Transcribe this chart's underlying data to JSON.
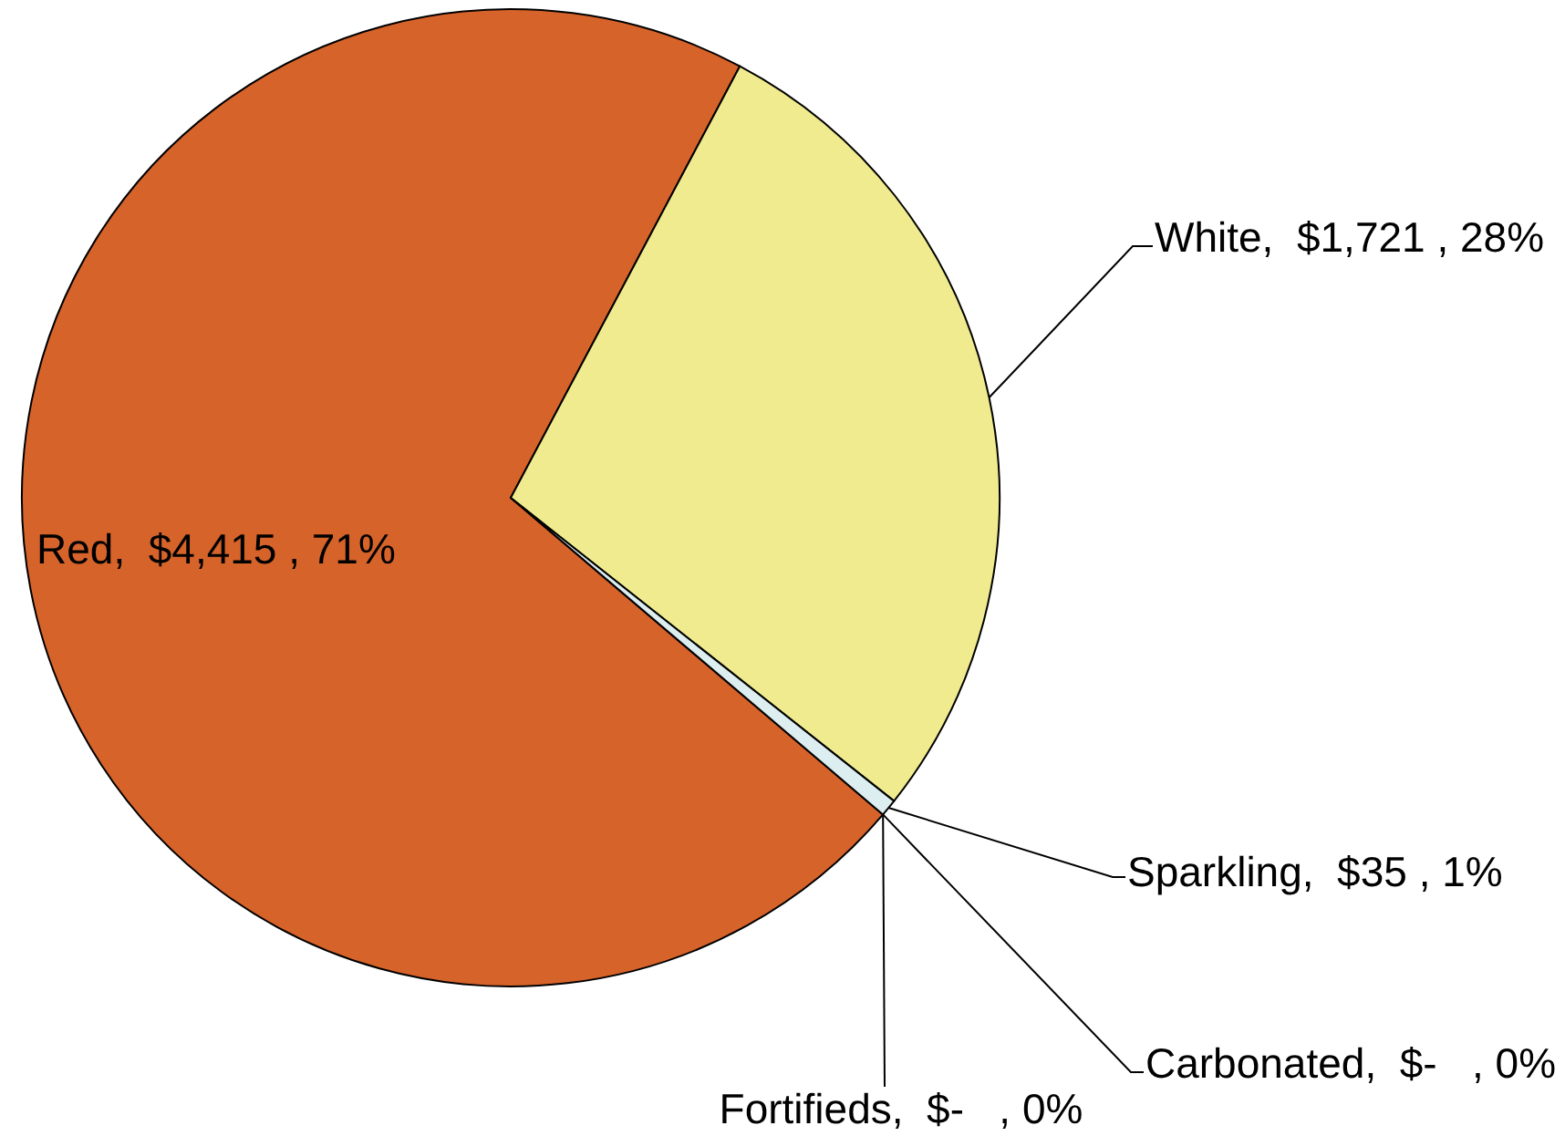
{
  "chart_data": {
    "type": "pie",
    "categories": [
      "Red",
      "White",
      "Sparkling",
      "Carbonated",
      "Fortifieds"
    ],
    "values": [
      4415,
      1721,
      35,
      0,
      0
    ],
    "colors": [
      "#d6632a",
      "#f0eb8e",
      "#ddeef0",
      null,
      null
    ],
    "value_labels": [
      ",  $4,415 , 71%",
      ",  $1,721 , 28%",
      ",  $35 , 1%",
      ",  $-   , 0%",
      ",  $-   , 0%"
    ]
  }
}
